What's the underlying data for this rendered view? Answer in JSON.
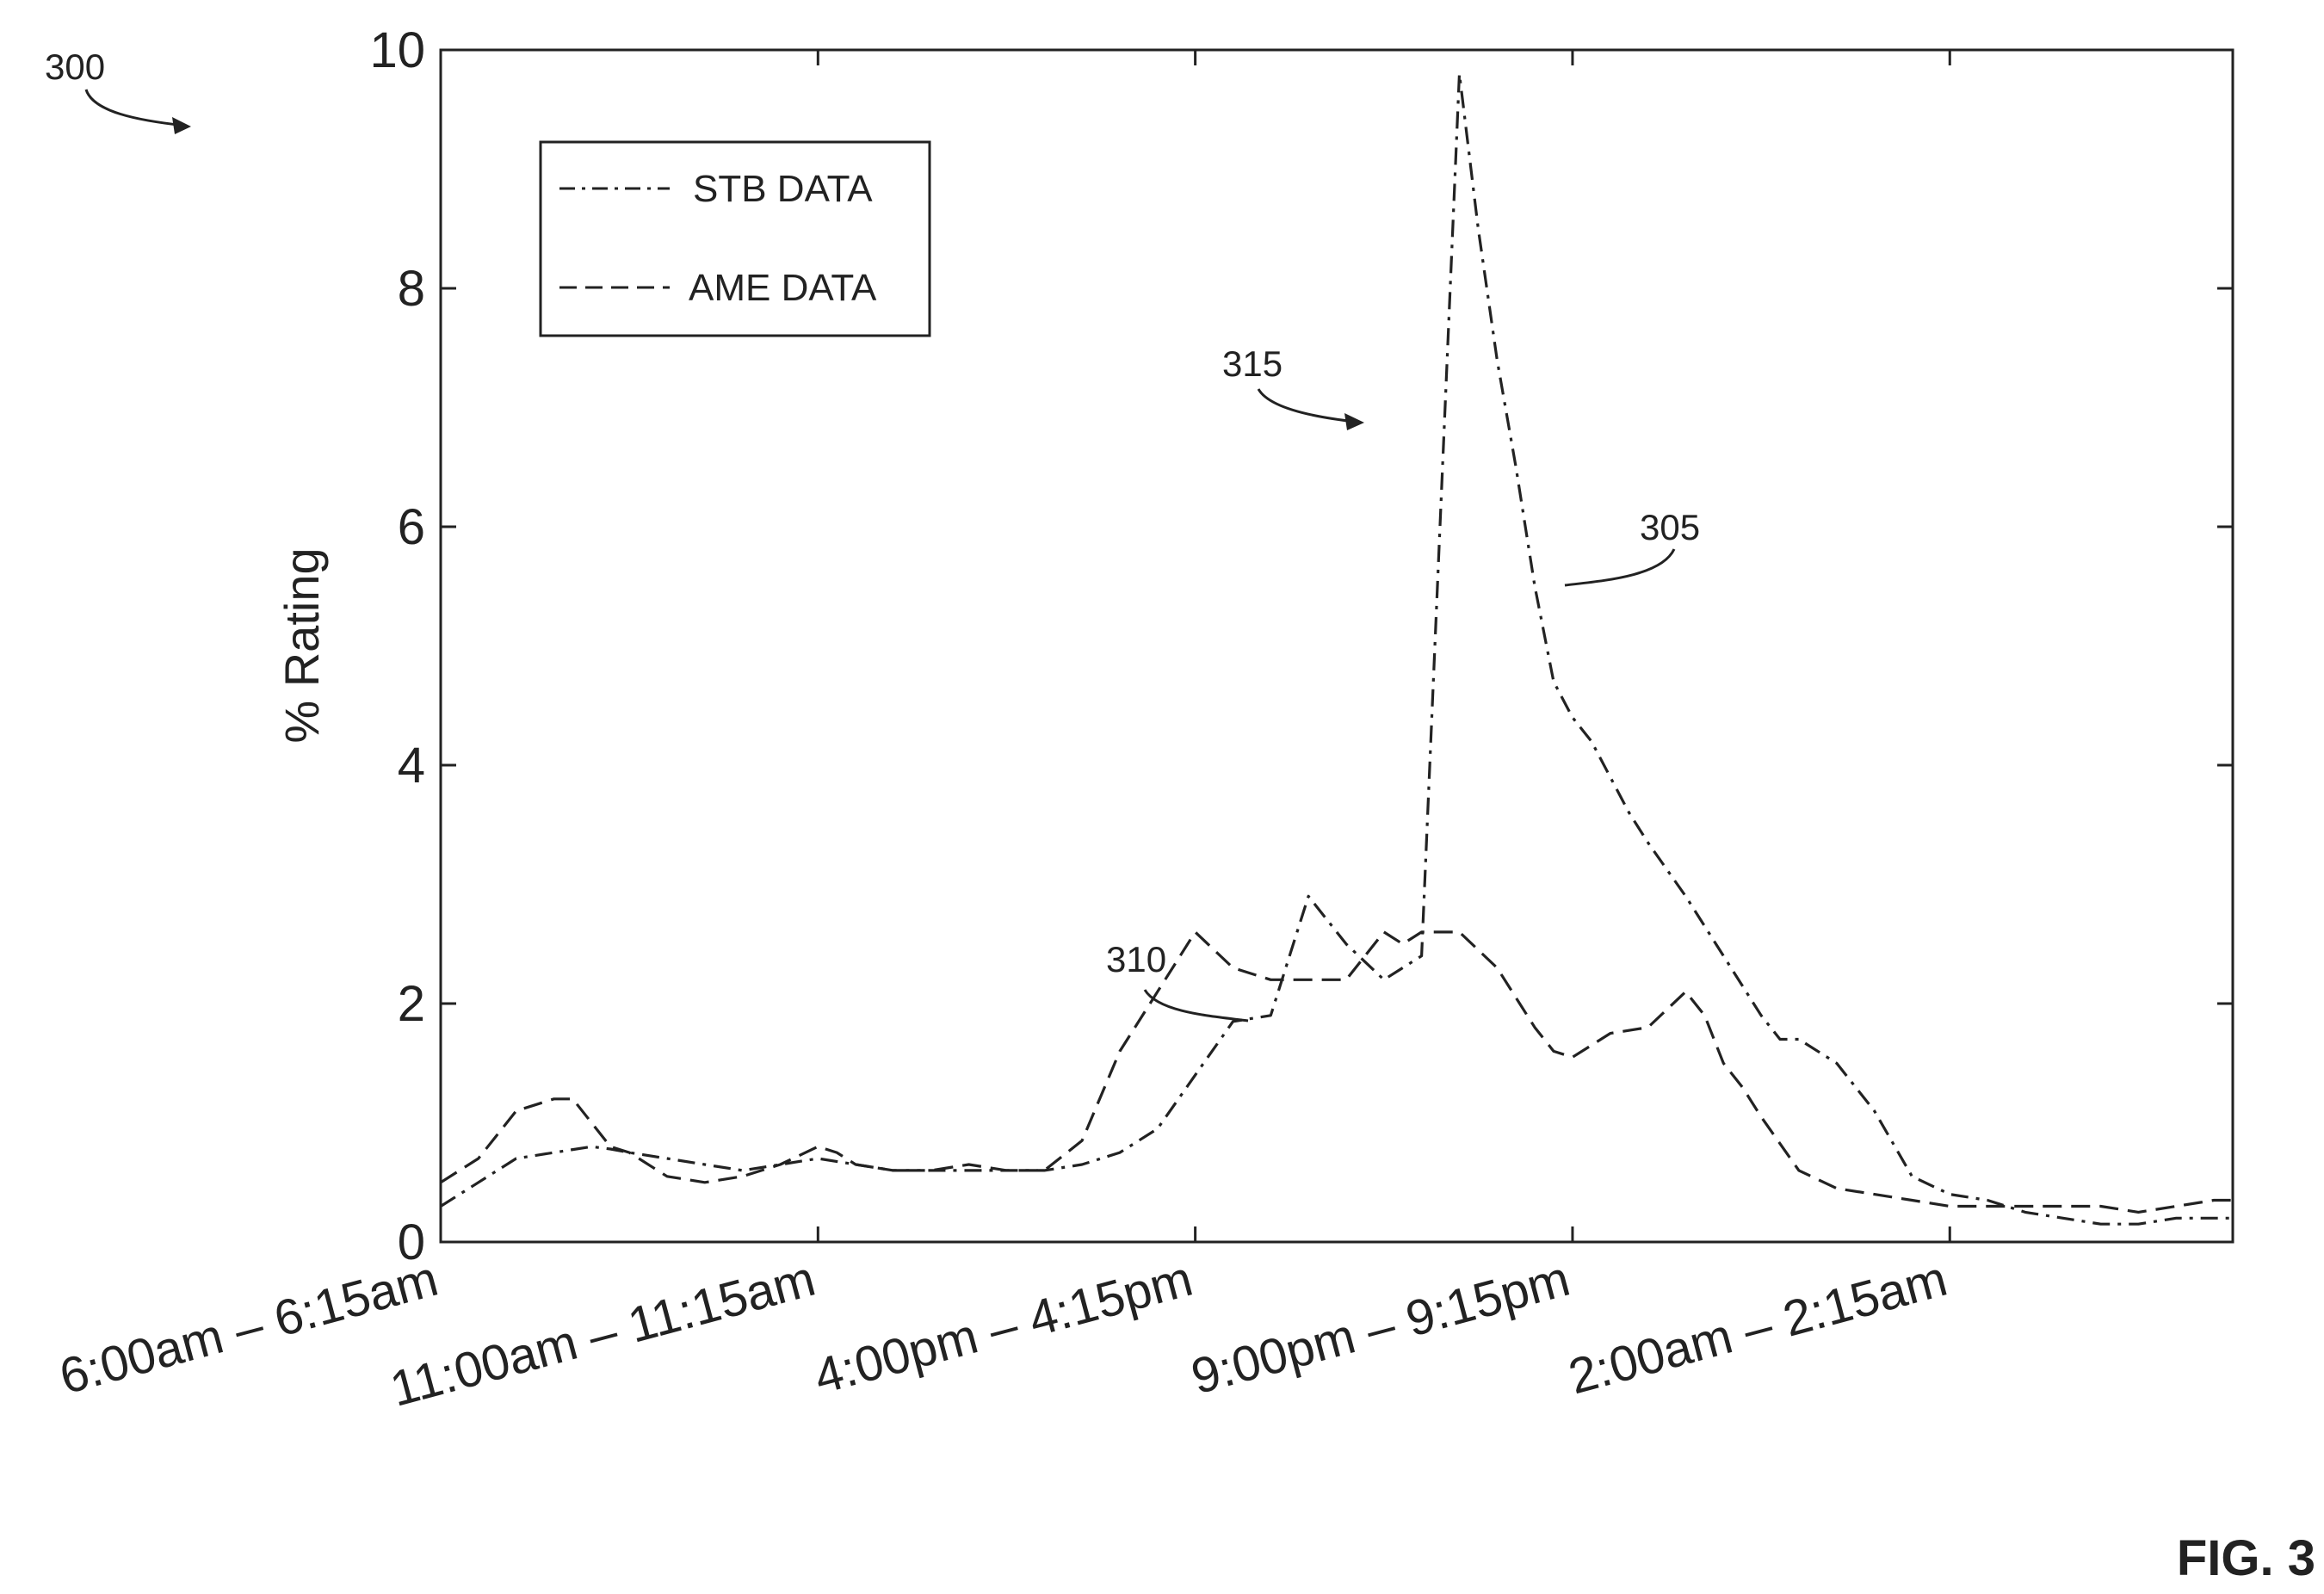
{
  "figure": {
    "ref_300": "300",
    "ref_315": "315",
    "ref_305": "305",
    "ref_310": "310",
    "fig_label": "FIG. 3"
  },
  "chart_data": {
    "type": "line",
    "title": "",
    "xlabel": "",
    "ylabel": "% Rating",
    "ylim": [
      0,
      10
    ],
    "xlim": [
      0,
      95
    ],
    "yticks": [
      0,
      2,
      4,
      6,
      8,
      10
    ],
    "ytick_labels": [
      "0",
      "2",
      "4",
      "6",
      "8",
      "10"
    ],
    "xticks": [
      0,
      20,
      40,
      60,
      80
    ],
    "xtick_labels": [
      "6:00am – 6:15am",
      "11:00am – 11:15am",
      "4:00pm – 4:15pm",
      "9:00pm – 9:15pm",
      "2:00am – 2:15am"
    ],
    "legend_position": "top-left",
    "grid": false,
    "series": [
      {
        "name": "STB DATA",
        "style": "dash-dot",
        "color": "#222222",
        "x": [
          0,
          2,
          4,
          6,
          8,
          9,
          10,
          12,
          14,
          16,
          18,
          20,
          22,
          24,
          26,
          28,
          30,
          32,
          34,
          36,
          38,
          40,
          42,
          44,
          46,
          48,
          50,
          52,
          54,
          55,
          56,
          57,
          58,
          59,
          60,
          61,
          62,
          63,
          64,
          66,
          68,
          70,
          71,
          72,
          74,
          76,
          78,
          80,
          82,
          84,
          86,
          88,
          90,
          92,
          94,
          95
        ],
        "y": [
          0.3,
          0.5,
          0.7,
          0.75,
          0.8,
          0.78,
          0.75,
          0.7,
          0.65,
          0.6,
          0.65,
          0.7,
          0.65,
          0.6,
          0.6,
          0.6,
          0.6,
          0.6,
          0.65,
          0.75,
          0.95,
          1.4,
          1.85,
          1.9,
          2.9,
          2.5,
          2.2,
          2.4,
          9.8,
          8.5,
          7.4,
          6.5,
          5.5,
          4.7,
          4.4,
          4.2,
          3.9,
          3.6,
          3.35,
          2.9,
          2.4,
          1.9,
          1.7,
          1.7,
          1.5,
          1.1,
          0.55,
          0.4,
          0.35,
          0.25,
          0.2,
          0.15,
          0.15,
          0.2,
          0.2,
          0.2
        ]
      },
      {
        "name": "AME DATA",
        "style": "dashed",
        "color": "#222222",
        "x": [
          0,
          2,
          4,
          6,
          7,
          8,
          9,
          10,
          12,
          14,
          16,
          18,
          20,
          21,
          22,
          24,
          26,
          28,
          30,
          32,
          34,
          36,
          38,
          40,
          42,
          44,
          46,
          47,
          48,
          50,
          51,
          52,
          53,
          54,
          56,
          58,
          59,
          60,
          62,
          64,
          66,
          67,
          68,
          69,
          70,
          72,
          74,
          76,
          78,
          80,
          82,
          84,
          86,
          88,
          90,
          92,
          94,
          95
        ],
        "y": [
          0.5,
          0.7,
          1.1,
          1.2,
          1.2,
          1.0,
          0.8,
          0.75,
          0.55,
          0.5,
          0.55,
          0.65,
          0.8,
          0.75,
          0.65,
          0.6,
          0.6,
          0.65,
          0.6,
          0.6,
          0.85,
          1.6,
          2.1,
          2.6,
          2.3,
          2.2,
          2.2,
          2.2,
          2.2,
          2.6,
          2.5,
          2.6,
          2.6,
          2.6,
          2.3,
          1.8,
          1.6,
          1.55,
          1.75,
          1.8,
          2.1,
          1.9,
          1.5,
          1.3,
          1.05,
          0.6,
          0.45,
          0.4,
          0.35,
          0.3,
          0.3,
          0.3,
          0.3,
          0.3,
          0.25,
          0.3,
          0.35,
          0.35
        ]
      }
    ]
  }
}
